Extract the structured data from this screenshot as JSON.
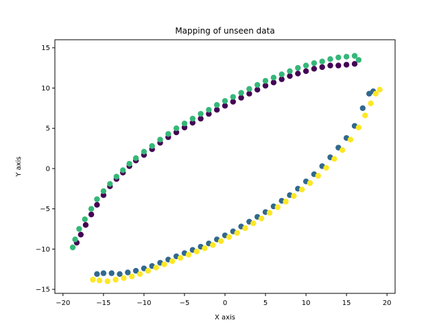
{
  "chart_data": {
    "type": "scatter",
    "title": "Mapping of unseen data",
    "xlabel": "X axis",
    "ylabel": "Y axis",
    "xlim": [
      -21,
      21
    ],
    "ylim": [
      -15.5,
      16
    ],
    "x_ticks": [
      -20,
      -15,
      -10,
      -5,
      0,
      5,
      10,
      15,
      20
    ],
    "y_ticks": [
      -15,
      -10,
      -5,
      0,
      5,
      10,
      15
    ],
    "x_tick_labels": [
      "−20",
      "−15",
      "−10",
      "−5",
      "0",
      "5",
      "10",
      "15",
      "20"
    ],
    "y_tick_labels": [
      "−15",
      "−10",
      "−5",
      "0",
      "5",
      "10",
      "15"
    ],
    "grid": false,
    "legend": false,
    "series": [
      {
        "color": "#440154",
        "points": [
          [
            -18.3,
            -9.2
          ],
          [
            -17.8,
            -8.2
          ],
          [
            -17.2,
            -7.0
          ],
          [
            -16.5,
            -5.7
          ],
          [
            -15.8,
            -4.5
          ],
          [
            -15.0,
            -3.3
          ],
          [
            -14.2,
            -2.2
          ],
          [
            -13.4,
            -1.3
          ],
          [
            -12.6,
            -0.5
          ],
          [
            -11.8,
            0.3
          ],
          [
            -11.0,
            1.0
          ],
          [
            -10.0,
            1.7
          ],
          [
            -9.0,
            2.4
          ],
          [
            -8.0,
            3.2
          ],
          [
            -7.0,
            3.9
          ],
          [
            -6.0,
            4.5
          ],
          [
            -5.0,
            5.1
          ],
          [
            -4.0,
            5.7
          ],
          [
            -3.0,
            6.2
          ],
          [
            -2.0,
            6.8
          ],
          [
            -1.0,
            7.3
          ],
          [
            0.0,
            7.8
          ],
          [
            1.0,
            8.3
          ],
          [
            2.0,
            8.8
          ],
          [
            3.0,
            9.3
          ],
          [
            4.0,
            9.8
          ],
          [
            5.0,
            10.3
          ],
          [
            6.0,
            10.7
          ],
          [
            7.0,
            11.1
          ],
          [
            8.0,
            11.5
          ],
          [
            9.0,
            11.8
          ],
          [
            10.0,
            12.1
          ],
          [
            11.0,
            12.4
          ],
          [
            12.0,
            12.6
          ],
          [
            13.0,
            12.8
          ],
          [
            14.0,
            12.8
          ],
          [
            15.0,
            12.9
          ],
          [
            16.0,
            13.0
          ]
        ]
      },
      {
        "color": "#31688e",
        "points": [
          [
            -15.8,
            -13.1
          ],
          [
            -15.0,
            -13.0
          ],
          [
            -14.0,
            -13.0
          ],
          [
            -13.0,
            -13.1
          ],
          [
            -12.0,
            -12.9
          ],
          [
            -11.0,
            -12.7
          ],
          [
            -10.0,
            -12.4
          ],
          [
            -9.0,
            -12.1
          ],
          [
            -8.0,
            -11.7
          ],
          [
            -7.0,
            -11.3
          ],
          [
            -6.0,
            -10.9
          ],
          [
            -5.0,
            -10.5
          ],
          [
            -4.0,
            -10.1
          ],
          [
            -3.0,
            -9.7
          ],
          [
            -2.0,
            -9.3
          ],
          [
            -1.0,
            -8.8
          ],
          [
            0.0,
            -8.3
          ],
          [
            1.0,
            -7.8
          ],
          [
            2.0,
            -7.2
          ],
          [
            3.0,
            -6.6
          ],
          [
            4.0,
            -6.0
          ],
          [
            5.0,
            -5.4
          ],
          [
            6.0,
            -4.7
          ],
          [
            7.0,
            -4.0
          ],
          [
            8.0,
            -3.3
          ],
          [
            9.0,
            -2.5
          ],
          [
            10.0,
            -1.6
          ],
          [
            11.0,
            -0.7
          ],
          [
            12.0,
            0.3
          ],
          [
            13.0,
            1.4
          ],
          [
            14.0,
            2.6
          ],
          [
            15.0,
            3.8
          ],
          [
            16.0,
            5.3
          ],
          [
            17.0,
            7.5
          ],
          [
            17.8,
            9.3
          ],
          [
            18.3,
            9.6
          ]
        ]
      },
      {
        "color": "#35b779",
        "points": [
          [
            -18.8,
            -9.8
          ],
          [
            -18.5,
            -8.8
          ],
          [
            -18.0,
            -7.5
          ],
          [
            -17.3,
            -6.3
          ],
          [
            -16.5,
            -5.0
          ],
          [
            -15.8,
            -3.8
          ],
          [
            -15.0,
            -2.8
          ],
          [
            -14.2,
            -1.9
          ],
          [
            -13.4,
            -1.0
          ],
          [
            -12.6,
            -0.2
          ],
          [
            -11.8,
            0.6
          ],
          [
            -11.0,
            1.3
          ],
          [
            -10.0,
            2.1
          ],
          [
            -9.0,
            2.8
          ],
          [
            -8.0,
            3.6
          ],
          [
            -7.0,
            4.3
          ],
          [
            -6.0,
            5.0
          ],
          [
            -5.0,
            5.6
          ],
          [
            -4.0,
            6.2
          ],
          [
            -3.0,
            6.8
          ],
          [
            -2.0,
            7.3
          ],
          [
            -1.0,
            7.9
          ],
          [
            0.0,
            8.4
          ],
          [
            1.0,
            8.9
          ],
          [
            2.0,
            9.4
          ],
          [
            3.0,
            9.9
          ],
          [
            4.0,
            10.4
          ],
          [
            5.0,
            10.9
          ],
          [
            6.0,
            11.3
          ],
          [
            7.0,
            11.7
          ],
          [
            8.0,
            12.1
          ],
          [
            9.0,
            12.5
          ],
          [
            10.0,
            12.8
          ],
          [
            11.0,
            13.1
          ],
          [
            12.0,
            13.3
          ],
          [
            13.0,
            13.6
          ],
          [
            14.0,
            13.8
          ],
          [
            15.0,
            13.9
          ],
          [
            16.0,
            14.0
          ],
          [
            16.5,
            13.5
          ]
        ]
      },
      {
        "color": "#fde725",
        "points": [
          [
            -16.3,
            -13.8
          ],
          [
            -15.5,
            -13.9
          ],
          [
            -14.5,
            -14.0
          ],
          [
            -13.5,
            -13.8
          ],
          [
            -12.5,
            -13.6
          ],
          [
            -11.5,
            -13.4
          ],
          [
            -10.5,
            -13.1
          ],
          [
            -9.5,
            -12.7
          ],
          [
            -8.5,
            -12.3
          ],
          [
            -7.5,
            -11.9
          ],
          [
            -6.5,
            -11.5
          ],
          [
            -5.5,
            -11.1
          ],
          [
            -4.5,
            -10.7
          ],
          [
            -3.5,
            -10.3
          ],
          [
            -2.5,
            -9.9
          ],
          [
            -1.5,
            -9.5
          ],
          [
            -0.5,
            -9.0
          ],
          [
            0.5,
            -8.5
          ],
          [
            1.5,
            -8.0
          ],
          [
            2.5,
            -7.4
          ],
          [
            3.5,
            -6.8
          ],
          [
            4.5,
            -6.2
          ],
          [
            5.5,
            -5.5
          ],
          [
            6.5,
            -4.8
          ],
          [
            7.5,
            -4.1
          ],
          [
            8.5,
            -3.4
          ],
          [
            9.5,
            -2.6
          ],
          [
            10.5,
            -1.8
          ],
          [
            11.5,
            -0.9
          ],
          [
            12.5,
            0.1
          ],
          [
            13.5,
            1.2
          ],
          [
            14.5,
            2.3
          ],
          [
            15.5,
            3.6
          ],
          [
            16.5,
            5.1
          ],
          [
            17.3,
            6.6
          ],
          [
            18.0,
            8.1
          ],
          [
            18.6,
            9.3
          ],
          [
            19.1,
            9.8
          ]
        ]
      }
    ]
  }
}
